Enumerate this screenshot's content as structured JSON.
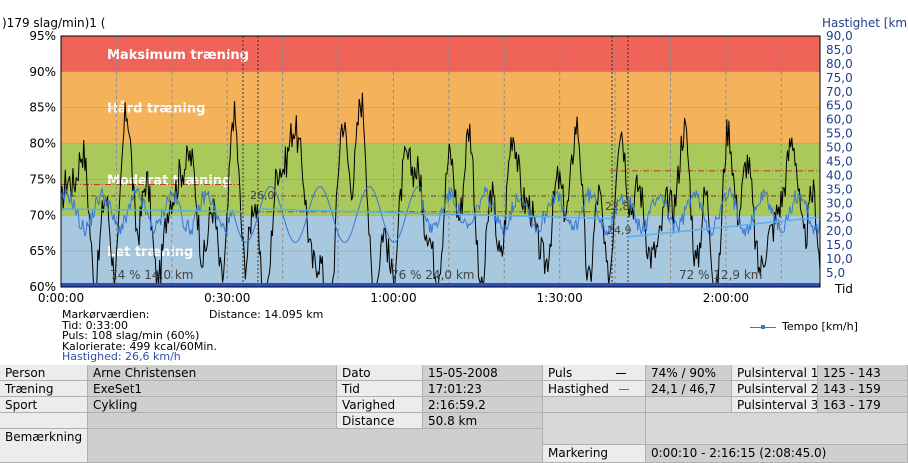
{
  "chart_data": {
    "type": "line",
    "title": ")179 slag/min)1 (",
    "y_left": {
      "label": "",
      "ticks": [
        "95%",
        "90%",
        "85%",
        "80%",
        "75%",
        "70%",
        "65%",
        "60%"
      ],
      "range": [
        60,
        95
      ]
    },
    "y_right": {
      "label": "Hastighet [km",
      "ticks": [
        "90,0",
        "85,0",
        "80,0",
        "75,0",
        "70,0",
        "65,0",
        "60,0",
        "55,0",
        "50,0",
        "45,0",
        "40,0",
        "35,0",
        "30,0",
        "25,0",
        "20,0",
        "15,0",
        "10,0",
        "5,0"
      ],
      "range": [
        0,
        90
      ]
    },
    "x": {
      "label": "Tid",
      "ticks": [
        "0:00:00",
        "0:30:00",
        "1:00:00",
        "1:30:00",
        "2:00:00"
      ]
    },
    "zones": [
      {
        "label": "Maksimum træning",
        "from": 90,
        "to": 95,
        "color": "#ef6358"
      },
      {
        "label": "Hård træning",
        "from": 80,
        "to": 90,
        "color": "#f4b25a"
      },
      {
        "label": "Moderat træning",
        "from": 70,
        "to": 80,
        "color": "#a9c95a"
      },
      {
        "label": "Let træning",
        "from": 60,
        "to": 70,
        "color": "#a7c8de"
      }
    ],
    "segment_labels": [
      "74 % 14,0 km",
      "76 % 24,0 km",
      "72 % 12,9 km"
    ],
    "speed_labels": [
      "26,0",
      "22,8",
      "24,9"
    ],
    "series": [
      {
        "name": "",
        "color": "#000000"
      },
      {
        "name": "Tempo [km/h]",
        "color": "#3a78d0"
      }
    ]
  },
  "marker": {
    "title": "Markørværdien:",
    "distance": "Distance: 14.095 km",
    "time": "Tid: 0:33:00",
    "pulse": "Puls: 108 slag/min (60%)",
    "calories": "Kalorierate: 499 kcal/60Min.",
    "speed": "Hastighed: 26,6 km/h"
  },
  "legend": {
    "label": "Tempo [km/h]"
  },
  "info": {
    "person_label": "Person",
    "person_value": "Arne Christensen",
    "training_label": "Træning",
    "training_value": "ExeSet1",
    "sport_label": "Sport",
    "sport_value": "Cykling",
    "remark_label": "Bemærkning",
    "date_label": "Dato",
    "date_value": "15-05-2008",
    "time_label": "Tid",
    "time_value": "17:01:23",
    "duration_label": "Varighed",
    "duration_value": "2:16:59.2",
    "distance_label": "Distance",
    "distance_value": "50.8 km",
    "pulse_label": "Puls",
    "pulse_value": "74% / 90%",
    "speed_label": "Hastighed",
    "speed_value": "24,1 / 46,7",
    "interval1_label": "Pulsinterval 1",
    "interval1_value": "125 - 143",
    "interval2_label": "Pulsinterval 2",
    "interval2_value": "143 - 159",
    "interval3_label": "Pulsinterval 3",
    "interval3_value": "163 - 179",
    "marking_label": "Markering",
    "marking_value": "0:00:10 - 2:16:15 (2:08:45.0)"
  }
}
